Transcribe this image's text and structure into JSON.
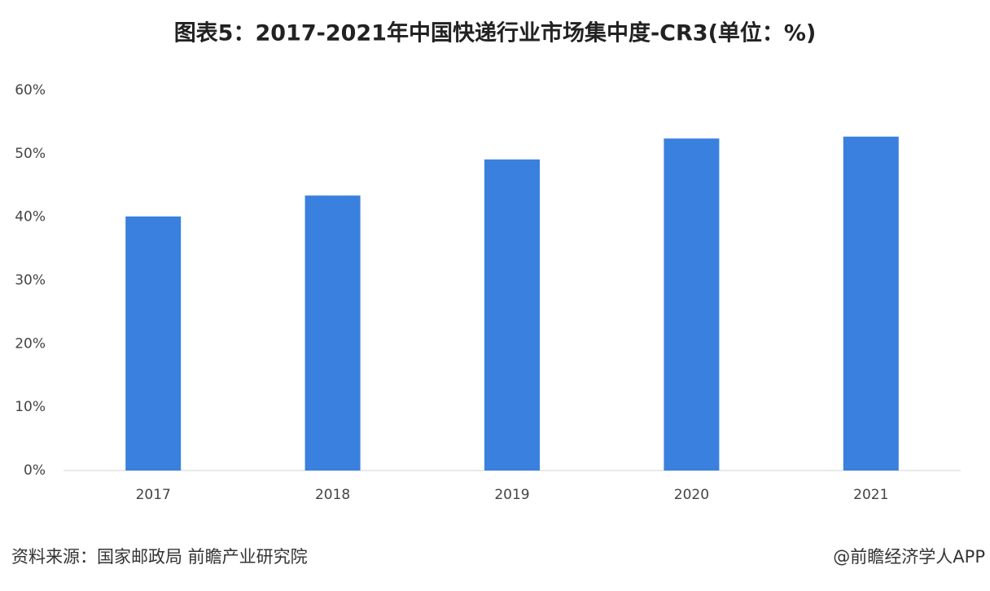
{
  "chart_data": {
    "type": "bar",
    "title": "图表5：2017-2021年中国快递行业市场集中度-CR3(单位：%)",
    "categories": [
      "2017",
      "2018",
      "2019",
      "2020",
      "2021"
    ],
    "values": [
      40.1,
      43.4,
      49.1,
      52.4,
      52.7
    ],
    "color": "#3a80de",
    "ylim": [
      0,
      60
    ],
    "yticks": [
      {
        "value": 0,
        "label": "0%"
      },
      {
        "value": 10,
        "label": "10%"
      },
      {
        "value": 20,
        "label": "20%"
      },
      {
        "value": 30,
        "label": "30%"
      },
      {
        "value": 40,
        "label": "40%"
      },
      {
        "value": 50,
        "label": "50%"
      },
      {
        "value": 60,
        "label": "60%"
      }
    ],
    "grid": false,
    "source": "资料来源：国家邮政局 前瞻产业研究院",
    "credit": "@前瞻经济学人APP"
  }
}
